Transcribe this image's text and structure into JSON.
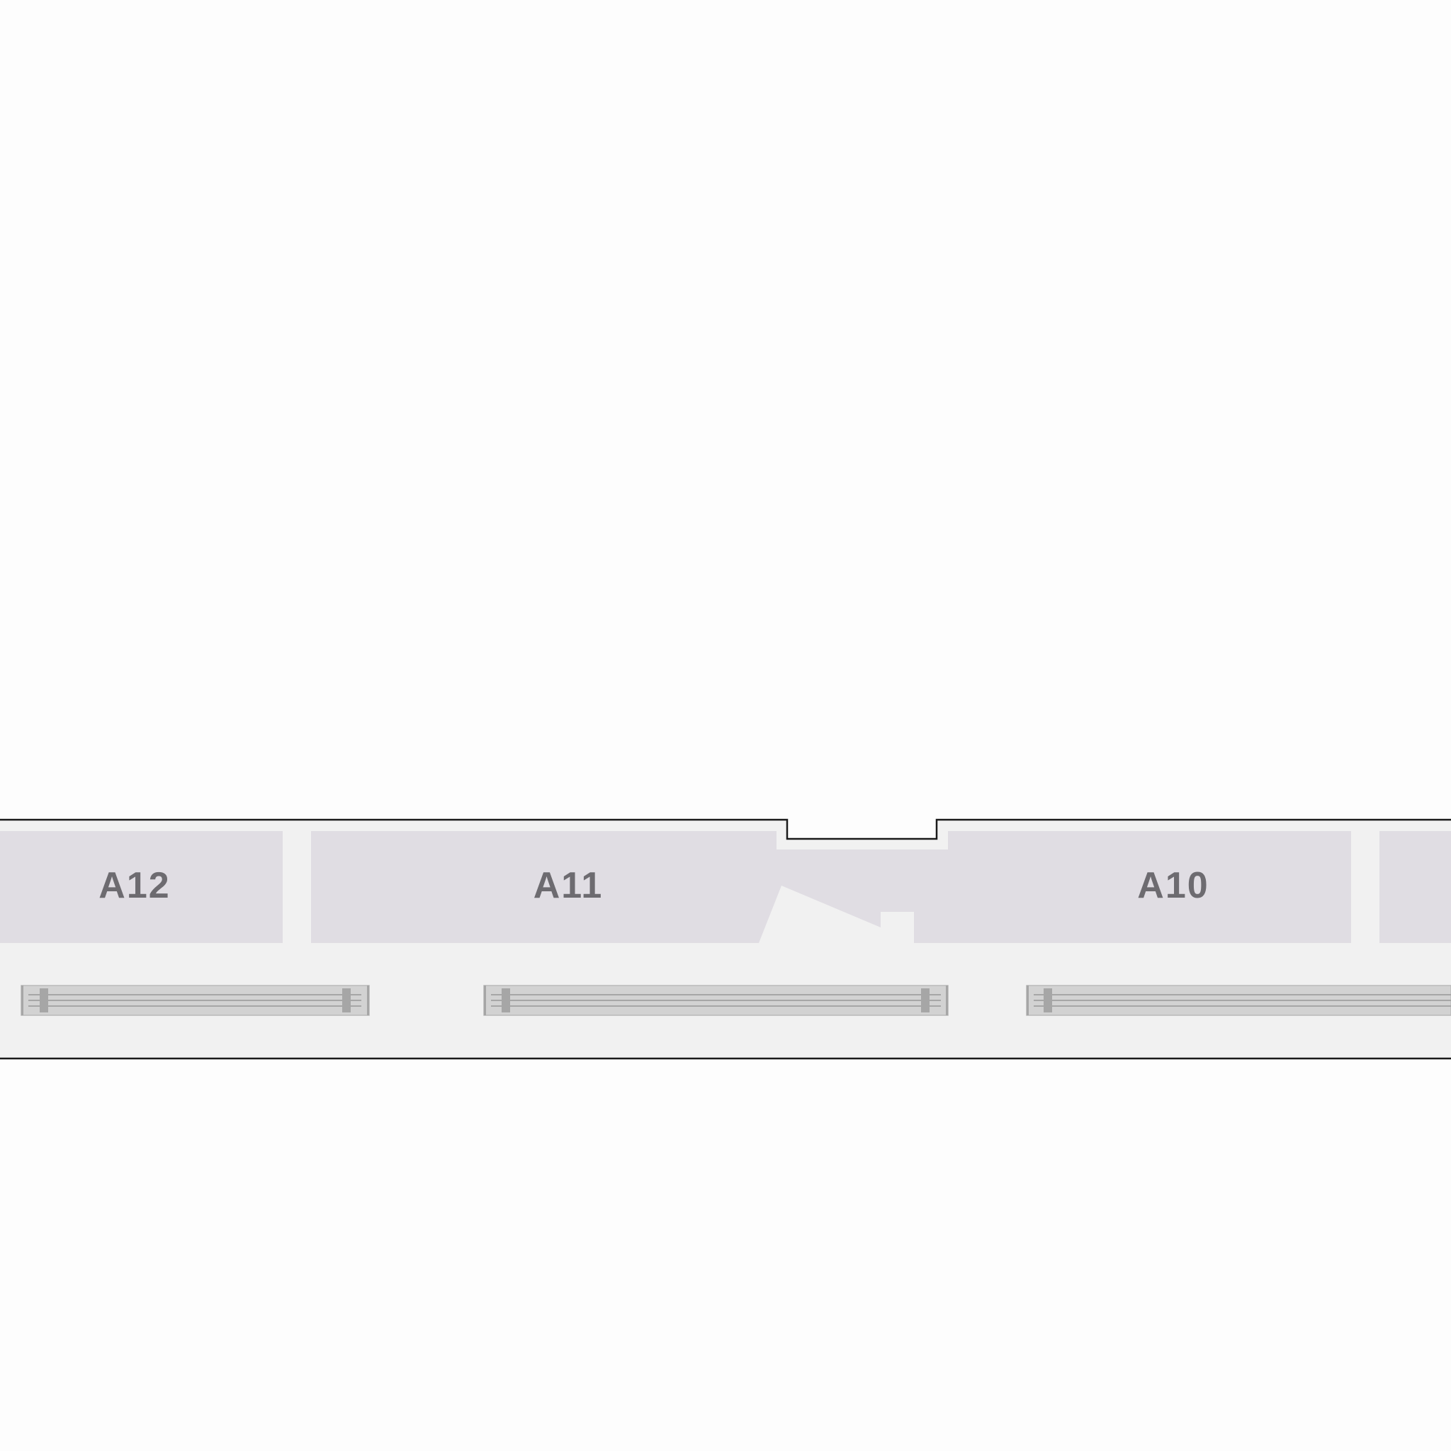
{
  "colors": {
    "background": "#fdfdfd",
    "corridor": "#f1f1f1",
    "room_fill": "#e0dde3",
    "outline": "#1a1a1a",
    "label": "#6d6b70",
    "walkway_frame": "#b9b9b9",
    "walkway_fill": "#d2d2d2",
    "walkway_post": "#a6a6a6"
  },
  "rooms": [
    {
      "label": "A12"
    },
    {
      "label": "A11"
    },
    {
      "label": "A10"
    },
    {
      "label": ""
    }
  ],
  "walkways": [
    {
      "name": "moving-walkway-1"
    },
    {
      "name": "moving-walkway-2"
    },
    {
      "name": "moving-walkway-3"
    }
  ]
}
